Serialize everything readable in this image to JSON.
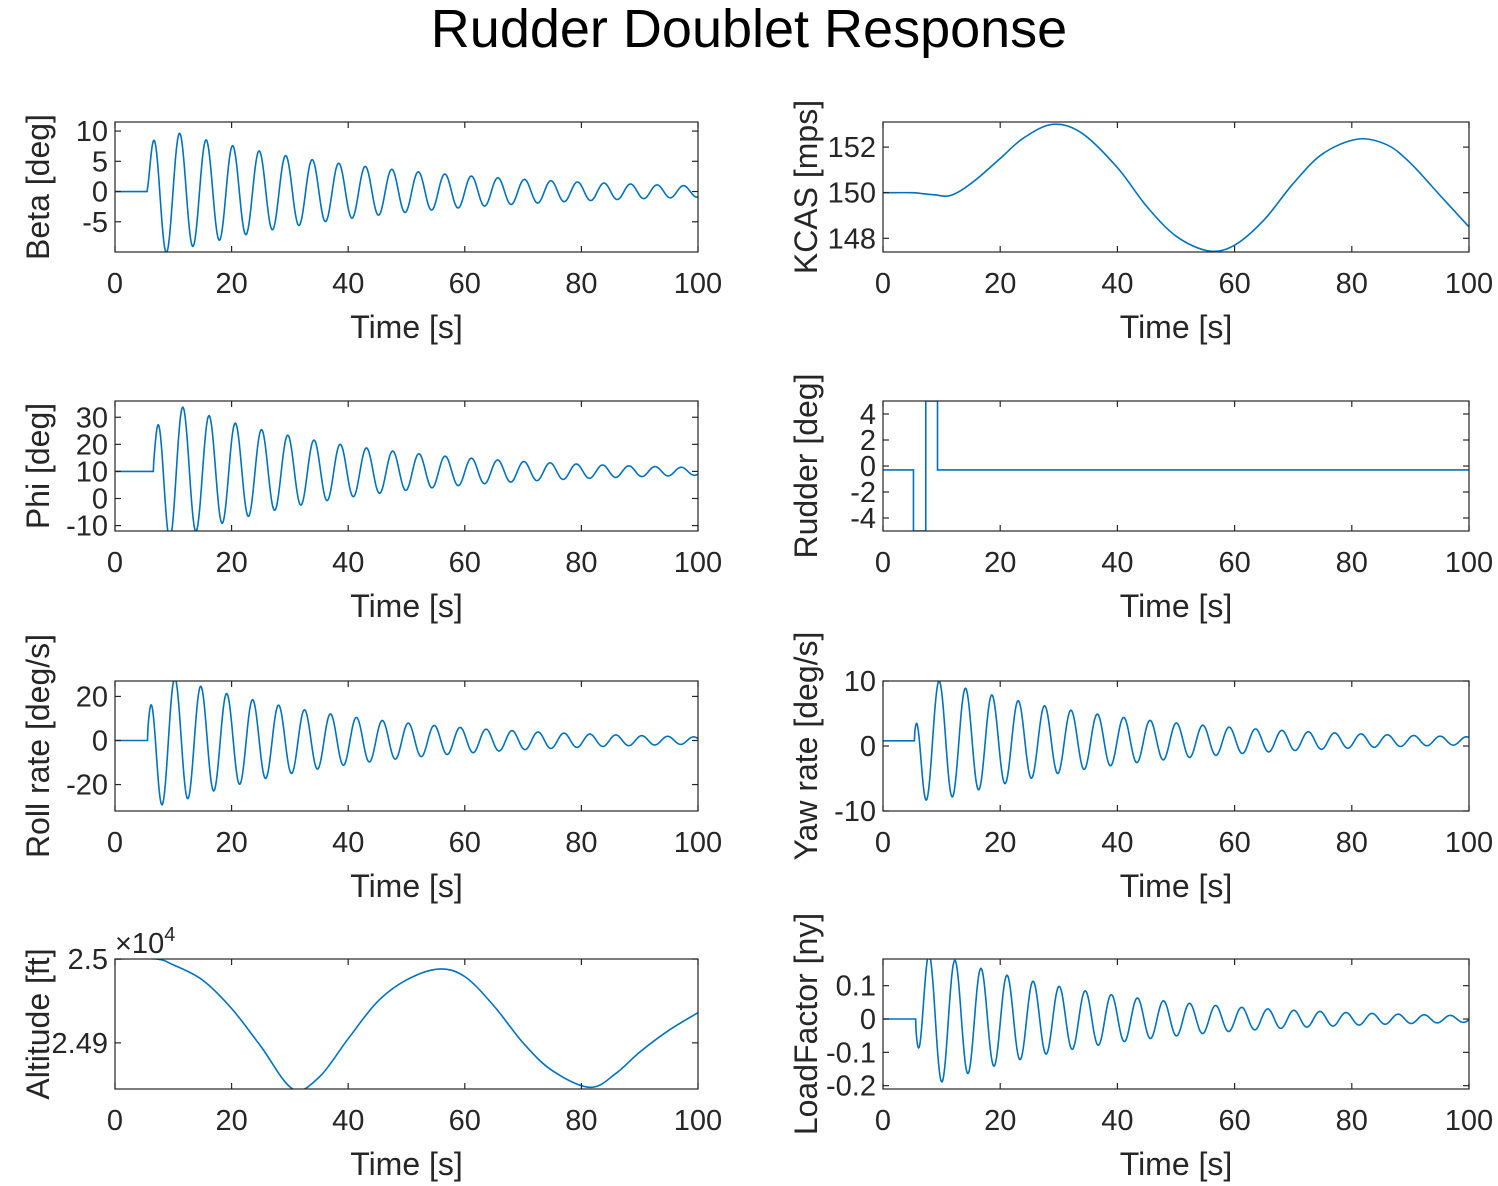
{
  "figure": {
    "title": "Rudder Doublet Response",
    "line_color": "#0072BD",
    "axis_color": "#262626"
  },
  "chart_data": [
    {
      "id": "beta",
      "type": "line",
      "title": "",
      "xlabel": "Time [s]",
      "ylabel": "Beta [deg]",
      "xlim": [
        0,
        100
      ],
      "ylim": [
        -10,
        11.5
      ],
      "xticks": [
        "0",
        "20",
        "40",
        "60",
        "80",
        "100"
      ],
      "yticks": [
        "10",
        "5",
        "0",
        "-5"
      ],
      "ytick_values": [
        10,
        5,
        0,
        -5
      ],
      "signal": {
        "kind": "oscillation",
        "t0": 5.4,
        "init": 0,
        "amp": 11.2,
        "period": 4.55,
        "decay": 0.0265,
        "phase": -1.5708
      }
    },
    {
      "id": "kcas",
      "type": "line",
      "title": "",
      "xlabel": "Time [s]",
      "ylabel": "KCAS [mps]",
      "xlim": [
        0,
        100
      ],
      "ylim": [
        147.4,
        153.1
      ],
      "xticks": [
        "0",
        "20",
        "40",
        "60",
        "80",
        "100"
      ],
      "yticks": [
        "152",
        "150",
        "148"
      ],
      "ytick_values": [
        152,
        150,
        148
      ],
      "points": [
        [
          0,
          150
        ],
        [
          5,
          150
        ],
        [
          7,
          149.95
        ],
        [
          9,
          149.9
        ],
        [
          11,
          149.85
        ],
        [
          13,
          150.05
        ],
        [
          16,
          150.6
        ],
        [
          20,
          151.5
        ],
        [
          24,
          152.4
        ],
        [
          29,
          153.0
        ],
        [
          34,
          152.6
        ],
        [
          40,
          151.1
        ],
        [
          45,
          149.4
        ],
        [
          50,
          148.1
        ],
        [
          55.5,
          147.45
        ],
        [
          60,
          147.7
        ],
        [
          65,
          148.8
        ],
        [
          70,
          150.4
        ],
        [
          75,
          151.7
        ],
        [
          81,
          152.35
        ],
        [
          86,
          152.1
        ],
        [
          90,
          151.3
        ],
        [
          95,
          149.9
        ],
        [
          100,
          148.5
        ]
      ]
    },
    {
      "id": "phi",
      "type": "line",
      "title": "",
      "xlabel": "Time [s]",
      "ylabel": "Phi [deg]",
      "xlim": [
        0,
        100
      ],
      "ylim": [
        -12,
        36
      ],
      "xticks": [
        "0",
        "20",
        "40",
        "60",
        "80",
        "100"
      ],
      "yticks": [
        "30",
        "20",
        "10",
        "0",
        "-10"
      ],
      "ytick_values": [
        30,
        20,
        10,
        0,
        -10
      ],
      "signal": {
        "kind": "oscillation",
        "t0": 6.5,
        "init": 10,
        "amp": 28,
        "period": 4.5,
        "decay": 0.032,
        "phase": -0.9
      }
    },
    {
      "id": "rudder",
      "type": "line",
      "title": "",
      "xlabel": "Time [s]",
      "ylabel": "Rudder [deg]",
      "xlim": [
        0,
        100
      ],
      "ylim": [
        -5,
        5
      ],
      "xticks": [
        "0",
        "20",
        "40",
        "60",
        "80",
        "100"
      ],
      "yticks": [
        "4",
        "2",
        "0",
        "-2",
        "-4"
      ],
      "ytick_values": [
        4,
        2,
        0,
        -2,
        -4
      ],
      "points": [
        [
          0,
          -0.3
        ],
        [
          5.2,
          -0.3
        ],
        [
          5.2,
          -5
        ],
        [
          7.3,
          -5
        ],
        [
          7.3,
          5
        ],
        [
          9.3,
          5
        ],
        [
          9.3,
          -0.3
        ],
        [
          100,
          -0.3
        ]
      ]
    },
    {
      "id": "roll",
      "type": "line",
      "title": "",
      "xlabel": "Time [s]",
      "ylabel": "Roll rate [deg/s]",
      "xlim": [
        0,
        100
      ],
      "ylim": [
        -32,
        27
      ],
      "xticks": [
        "0",
        "20",
        "40",
        "60",
        "80",
        "100"
      ],
      "yticks": [
        "20",
        "0",
        "-20"
      ],
      "ytick_values": [
        20,
        0,
        -20
      ],
      "signal": {
        "kind": "oscillation",
        "t0": 5.5,
        "init": 0,
        "amp": 33,
        "period": 4.45,
        "decay": 0.032,
        "phase": -0.45
      }
    },
    {
      "id": "yaw",
      "type": "line",
      "title": "",
      "xlabel": "Time [s]",
      "ylabel": "Yaw rate [deg/s]",
      "xlim": [
        0,
        100
      ],
      "ylim": [
        -10,
        10
      ],
      "xticks": [
        "0",
        "20",
        "40",
        "60",
        "80",
        "100"
      ],
      "yticks": [
        "10",
        "0",
        "-10"
      ],
      "ytick_values": [
        10,
        0,
        -10
      ],
      "signal": {
        "kind": "oscillation",
        "t0": 5.3,
        "init": 0.8,
        "amp": 10.5,
        "period": 4.5,
        "decay": 0.03,
        "phase": 0.3
      }
    },
    {
      "id": "altitude",
      "type": "line",
      "title": "",
      "xlabel": "Time [s]",
      "ylabel": "Altitude [ft]",
      "exponent_label": "×10",
      "exponent_power": "4",
      "xlim": [
        0,
        100
      ],
      "ylim": [
        2.4845,
        2.5
      ],
      "xticks": [
        "0",
        "20",
        "40",
        "60",
        "80",
        "100"
      ],
      "yticks": [
        "2.5",
        "2.49"
      ],
      "ytick_values": [
        2.5,
        2.49
      ],
      "points": [
        [
          0,
          2.5
        ],
        [
          7,
          2.5
        ],
        [
          10,
          2.4993
        ],
        [
          15,
          2.4975
        ],
        [
          20,
          2.4941
        ],
        [
          25,
          2.4896
        ],
        [
          30.5,
          2.4845
        ],
        [
          35,
          2.4859
        ],
        [
          40,
          2.4905
        ],
        [
          45,
          2.4949
        ],
        [
          50,
          2.4975
        ],
        [
          55.5,
          2.4988
        ],
        [
          60,
          2.4979
        ],
        [
          65,
          2.4944
        ],
        [
          70,
          2.49
        ],
        [
          75,
          2.4867
        ],
        [
          81.5,
          2.4847
        ],
        [
          86,
          2.4864
        ],
        [
          90,
          2.4889
        ],
        [
          95,
          2.4915
        ],
        [
          100,
          2.4936
        ]
      ]
    },
    {
      "id": "loadfactor",
      "type": "line",
      "title": "",
      "xlabel": "Time [s]",
      "ylabel": "LoadFactor [ny]",
      "xlim": [
        0,
        100
      ],
      "ylim": [
        -0.21,
        0.18
      ],
      "xticks": [
        "0",
        "20",
        "40",
        "60",
        "80",
        "100"
      ],
      "yticks": [
        "0.1",
        "0",
        "-0.1",
        "-0.2"
      ],
      "ytick_values": [
        0.1,
        0,
        -0.1,
        -0.2
      ],
      "signal": {
        "kind": "oscillation",
        "t0": 5.5,
        "init": 0,
        "amp": 0.22,
        "period": 4.45,
        "decay": 0.033,
        "phase": 3.0
      }
    }
  ]
}
